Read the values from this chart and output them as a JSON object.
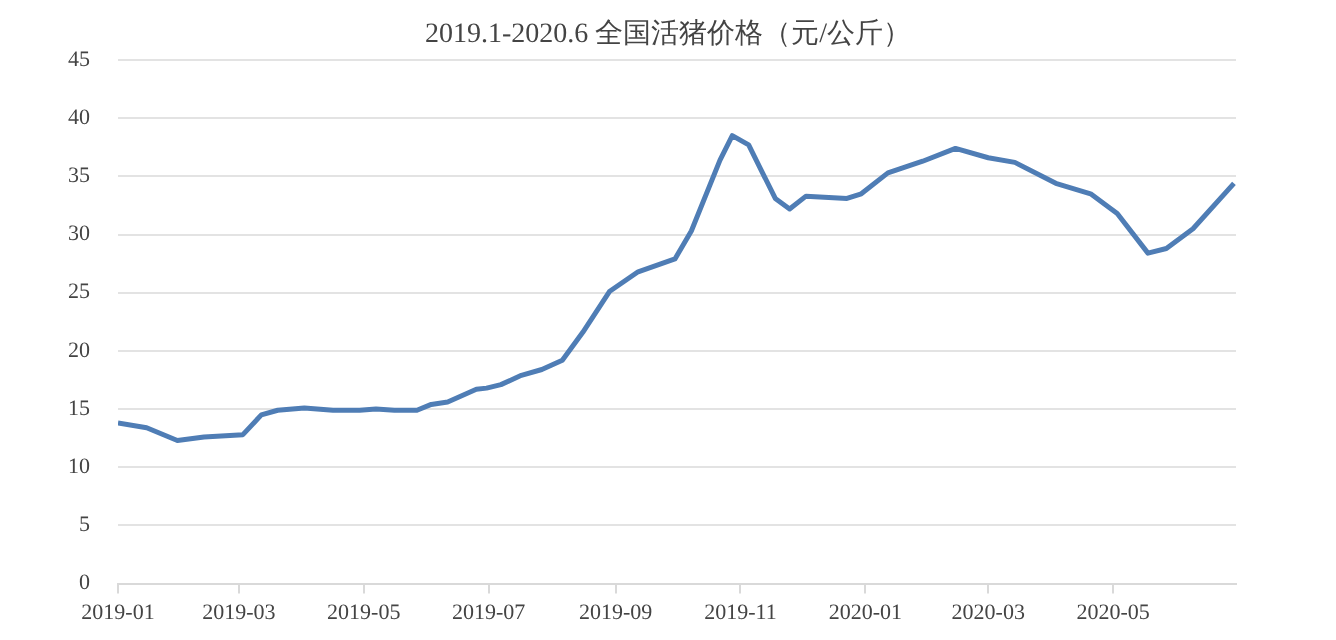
{
  "chart_data": {
    "type": "line",
    "title": "2019.1-2020.6 全国活猪价格（元/公斤）",
    "x": [
      "2019-01-01",
      "2019-01-15",
      "2019-01-30",
      "2019-02-12",
      "2019-03-03",
      "2019-03-12",
      "2019-03-20",
      "2019-04-02",
      "2019-04-16",
      "2019-04-29",
      "2019-05-07",
      "2019-05-16",
      "2019-05-27",
      "2019-06-03",
      "2019-06-11",
      "2019-06-25",
      "2019-06-30",
      "2019-07-07",
      "2019-07-17",
      "2019-07-27",
      "2019-08-06",
      "2019-08-16",
      "2019-08-29",
      "2019-09-12",
      "2019-09-30",
      "2019-10-08",
      "2019-10-22",
      "2019-10-28",
      "2019-11-05",
      "2019-11-18",
      "2019-11-25",
      "2019-12-03",
      "2019-12-23",
      "2019-12-30",
      "2020-01-12",
      "2020-01-29",
      "2020-02-14",
      "2020-03-01",
      "2020-03-14",
      "2020-04-03",
      "2020-04-20",
      "2020-05-03",
      "2020-05-18",
      "2020-05-27",
      "2020-06-09",
      "2020-06-29"
    ],
    "series": [
      {
        "color": "#4f7db5",
        "values": [
          13.8,
          13.4,
          12.3,
          12.6,
          12.8,
          14.5,
          14.9,
          15.1,
          14.9,
          14.9,
          15.0,
          14.9,
          14.9,
          15.4,
          15.6,
          16.7,
          16.8,
          17.1,
          17.9,
          18.4,
          19.2,
          21.6,
          25.1,
          26.8,
          27.9,
          30.3,
          36.4,
          38.5,
          37.7,
          33.1,
          32.2,
          33.3,
          33.1,
          33.5,
          35.3,
          36.3,
          37.4,
          36.6,
          36.2,
          34.4,
          33.5,
          31.8,
          28.4,
          28.8,
          30.5,
          34.4
        ]
      }
    ],
    "xlim": [
      "2019-01-01",
      "2020-06-30"
    ],
    "xticks": [
      "2019-01",
      "2019-03",
      "2019-05",
      "2019-07",
      "2019-09",
      "2019-11",
      "2020-01",
      "2020-03",
      "2020-05"
    ],
    "ylim": [
      0,
      45
    ],
    "yticks": [
      0,
      5,
      10,
      15,
      20,
      25,
      30,
      35,
      40,
      45
    ],
    "grid": "y",
    "legend": false,
    "marker": "none",
    "line_style": "solid"
  }
}
